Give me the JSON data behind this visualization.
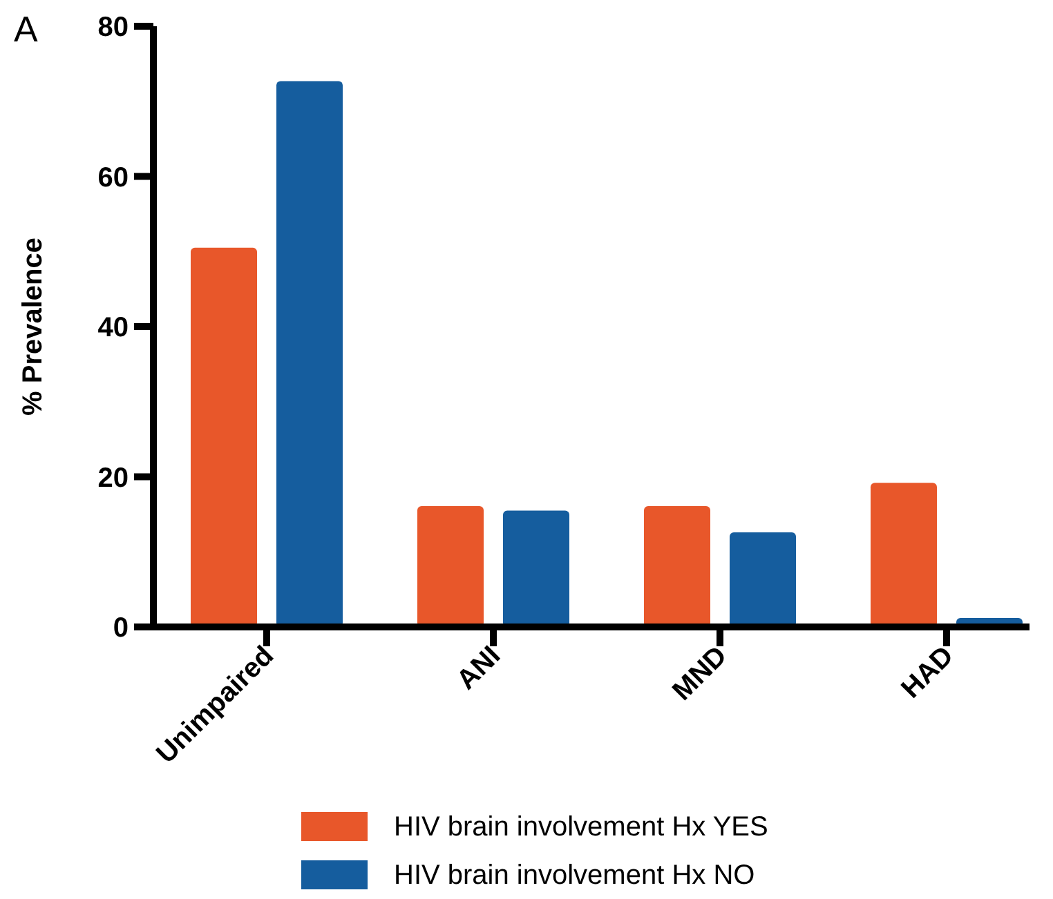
{
  "chart_data": {
    "type": "bar",
    "title": "A",
    "ylabel": "% Prevalence",
    "categories": [
      "Unimpaired",
      "ANI",
      "MND",
      "HAD"
    ],
    "series": [
      {
        "name": "HIV brain involvement Hx YES",
        "color": "#e8572a",
        "values": [
          50.5,
          16.1,
          16.1,
          19.2
        ]
      },
      {
        "name": "HIV brain involvement Hx NO",
        "color": "#155d9e",
        "values": [
          72.7,
          15.5,
          12.6,
          1.2
        ]
      }
    ],
    "ylim": [
      0,
      80
    ],
    "yticks": [
      0,
      20,
      40,
      60,
      80
    ],
    "grid": false,
    "legend": "bottom"
  }
}
